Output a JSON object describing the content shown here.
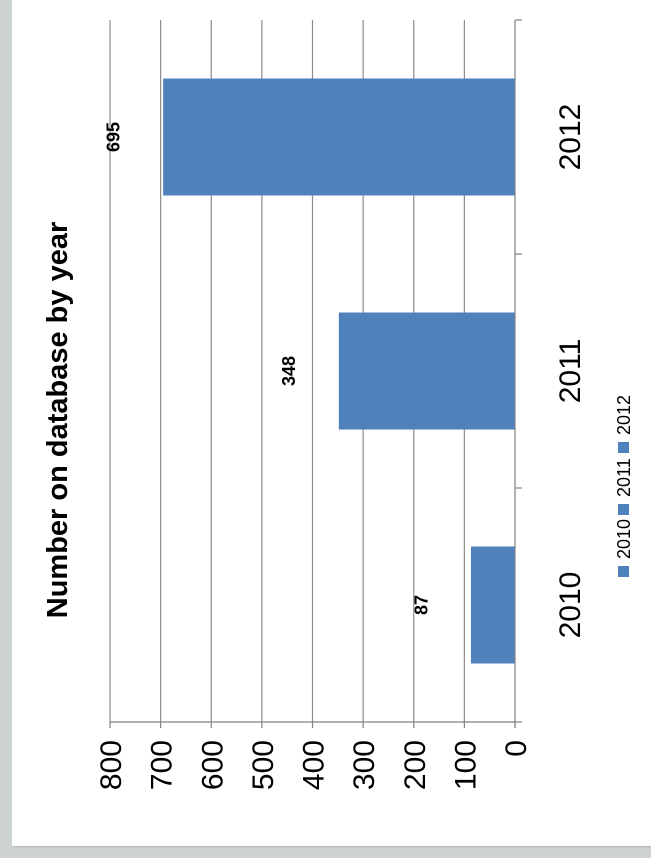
{
  "chart_data": {
    "type": "bar",
    "orientation": "rotated-90-ccw",
    "title": "Number on database by year",
    "categories": [
      "2010",
      "2011",
      "2012"
    ],
    "values": [
      87,
      348,
      695
    ],
    "data_labels": [
      "87",
      "348",
      "695"
    ],
    "ylim": [
      0,
      800
    ],
    "y_ticks": [
      "0",
      "100",
      "200",
      "300",
      "400",
      "500",
      "600",
      "700",
      "800"
    ],
    "grid": true,
    "legend": {
      "position": "right",
      "entries": [
        "2010",
        "2011",
        "2012"
      ]
    },
    "colors": {
      "bar": "#4f81bd",
      "grid": "#8c8c8c",
      "axis": "#808080"
    }
  }
}
